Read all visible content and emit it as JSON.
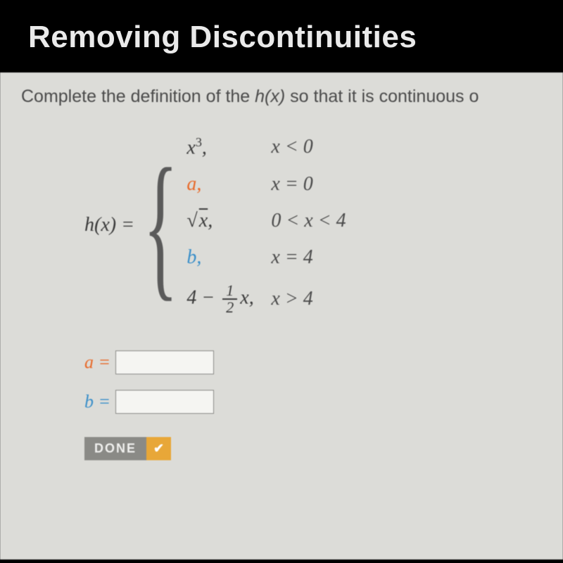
{
  "header": {
    "title": "Removing Discontinuities"
  },
  "instruction": {
    "prefix": "Complete the definition of the ",
    "fn": "h(x)",
    "suffix": " so that it is continuous o"
  },
  "piecewise": {
    "fn_label": "h(x) =",
    "cases": [
      {
        "expr_html": "x<span class='sup'>3</span>,",
        "cond": "x < 0",
        "css_class": ""
      },
      {
        "expr_html": "a,",
        "cond": "x = 0",
        "css_class": "param-a"
      },
      {
        "expr_html": "<span class='sqrt-sym'>√</span><span class='sqrt-bar'>x</span>,",
        "cond": "0 < x < 4",
        "css_class": ""
      },
      {
        "expr_html": "b,",
        "cond": "x = 4",
        "css_class": "param-b"
      },
      {
        "expr_html": "4 &minus; <span class='frac'><span class='num'>1</span><span class='den'>2</span></span>x,",
        "cond": "x > 4",
        "css_class": ""
      }
    ]
  },
  "inputs": {
    "a": {
      "label": "a =",
      "value": "",
      "color": "#e86a2a"
    },
    "b": {
      "label": "b =",
      "value": "",
      "color": "#3a8fc9"
    }
  },
  "done": {
    "label": "DONE",
    "check": "✔"
  },
  "colors": {
    "header_bg": "#000000",
    "header_text": "#eaeaea",
    "content_bg": "#dcdcd8",
    "param_a": "#e86a2a",
    "param_b": "#3a8fc9",
    "done_bg": "#8a8a86",
    "done_check_bg": "#e8a738",
    "text": "#3a3a3a"
  }
}
